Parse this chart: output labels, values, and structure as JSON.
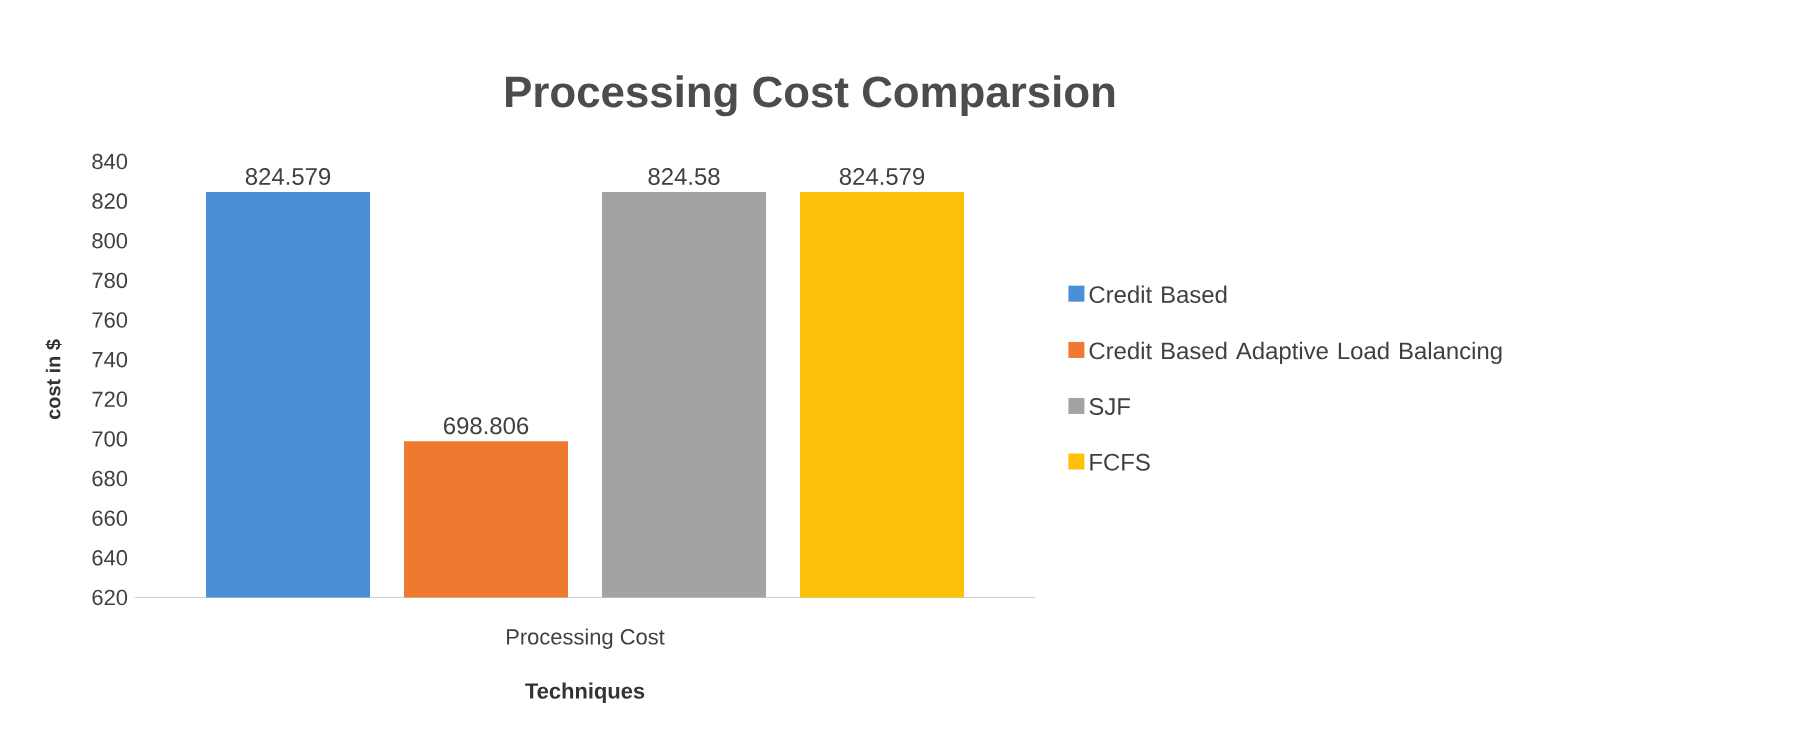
{
  "chart_data": {
    "type": "bar",
    "title": "Processing Cost Comparsion",
    "xlabel": "Techniques",
    "ylabel": "cost in $",
    "categories": [
      "Processing Cost"
    ],
    "series": [
      {
        "name": "Credit Based",
        "color": "#4a8fd8",
        "values": [
          824.579
        ]
      },
      {
        "name": "Credit Based Adaptive Load Balancing",
        "color": "#ee7a30",
        "values": [
          698.806
        ]
      },
      {
        "name": "SJF",
        "color": "#a3a3a3",
        "values": [
          824.58
        ]
      },
      {
        "name": "FCFS",
        "color": "#fcc20a",
        "values": [
          824.579
        ]
      }
    ],
    "ylim": [
      620,
      840
    ],
    "yticks": [
      620,
      640,
      660,
      680,
      700,
      720,
      740,
      760,
      780,
      800,
      820,
      840
    ],
    "data_labels": true,
    "legend": "right",
    "grid": false
  }
}
